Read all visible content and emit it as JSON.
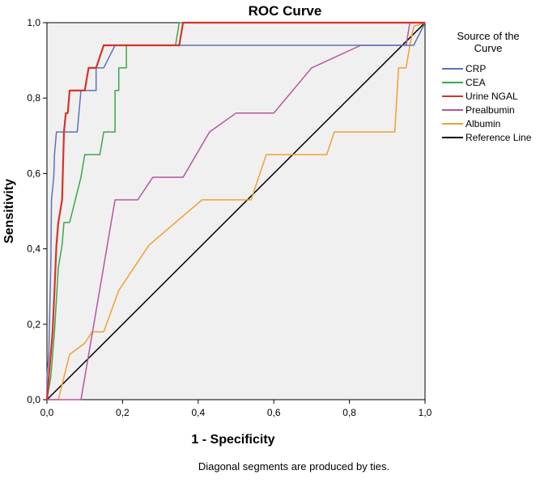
{
  "chart_data": {
    "type": "line",
    "title": "ROC Curve",
    "xlabel": "1 - Specificity",
    "ylabel": "Sensitivity",
    "xlim": [
      0,
      1
    ],
    "ylim": [
      0,
      1
    ],
    "x_ticks": [
      "0,0",
      "0,2",
      "0,4",
      "0,6",
      "0,8",
      "1,0"
    ],
    "y_ticks": [
      "0,0",
      "0,2",
      "0,4",
      "0,6",
      "0,8",
      "1,0"
    ],
    "grid": false,
    "legend_title": "Source of the Curve",
    "legend_position": "right",
    "footnote": "Diagonal segments are produced by ties.",
    "plot_background": "#f0f0f0",
    "series": [
      {
        "name": "CRP",
        "color": "#5b73b8",
        "points": [
          [
            0,
            0
          ],
          [
            0,
            0.06
          ],
          [
            0.005,
            0.12
          ],
          [
            0.01,
            0.35
          ],
          [
            0.012,
            0.53
          ],
          [
            0.018,
            0.59
          ],
          [
            0.02,
            0.65
          ],
          [
            0.025,
            0.71
          ],
          [
            0.06,
            0.71
          ],
          [
            0.08,
            0.71
          ],
          [
            0.09,
            0.82
          ],
          [
            0.13,
            0.82
          ],
          [
            0.13,
            0.88
          ],
          [
            0.15,
            0.88
          ],
          [
            0.18,
            0.94
          ],
          [
            0.36,
            0.94
          ],
          [
            0.95,
            0.94
          ],
          [
            0.97,
            0.94
          ],
          [
            1,
            1
          ]
        ]
      },
      {
        "name": "CEA",
        "color": "#3aa84a",
        "points": [
          [
            0,
            0
          ],
          [
            0.01,
            0.06
          ],
          [
            0.02,
            0.18
          ],
          [
            0.03,
            0.35
          ],
          [
            0.04,
            0.41
          ],
          [
            0.045,
            0.47
          ],
          [
            0.06,
            0.47
          ],
          [
            0.09,
            0.59
          ],
          [
            0.1,
            0.65
          ],
          [
            0.14,
            0.65
          ],
          [
            0.15,
            0.71
          ],
          [
            0.18,
            0.71
          ],
          [
            0.18,
            0.82
          ],
          [
            0.19,
            0.82
          ],
          [
            0.19,
            0.88
          ],
          [
            0.21,
            0.88
          ],
          [
            0.21,
            0.94
          ],
          [
            0.34,
            0.94
          ],
          [
            0.35,
            1
          ],
          [
            1,
            1
          ]
        ]
      },
      {
        "name": "Urine NGAL",
        "color": "#d8322a",
        "points": [
          [
            0,
            0
          ],
          [
            0.005,
            0.06
          ],
          [
            0.01,
            0.12
          ],
          [
            0.015,
            0.18
          ],
          [
            0.02,
            0.29
          ],
          [
            0.025,
            0.41
          ],
          [
            0.03,
            0.47
          ],
          [
            0.04,
            0.53
          ],
          [
            0.045,
            0.71
          ],
          [
            0.05,
            0.76
          ],
          [
            0.055,
            0.76
          ],
          [
            0.06,
            0.82
          ],
          [
            0.07,
            0.82
          ],
          [
            0.08,
            0.82
          ],
          [
            0.1,
            0.82
          ],
          [
            0.11,
            0.88
          ],
          [
            0.13,
            0.88
          ],
          [
            0.15,
            0.94
          ],
          [
            0.35,
            0.94
          ],
          [
            0.36,
            1
          ],
          [
            1,
            1
          ]
        ]
      },
      {
        "name": "Prealbumin",
        "color": "#b9559d",
        "points": [
          [
            0,
            0
          ],
          [
            0.09,
            0
          ],
          [
            0.18,
            0.53
          ],
          [
            0.24,
            0.53
          ],
          [
            0.28,
            0.59
          ],
          [
            0.36,
            0.59
          ],
          [
            0.43,
            0.71
          ],
          [
            0.5,
            0.76
          ],
          [
            0.56,
            0.76
          ],
          [
            0.6,
            0.76
          ],
          [
            0.7,
            0.88
          ],
          [
            0.83,
            0.94
          ],
          [
            0.95,
            0.94
          ],
          [
            0.96,
            1
          ],
          [
            1,
            1
          ]
        ]
      },
      {
        "name": "Albumin",
        "color": "#f0a132",
        "points": [
          [
            0,
            0
          ],
          [
            0.03,
            0
          ],
          [
            0.06,
            0.12
          ],
          [
            0.1,
            0.15
          ],
          [
            0.12,
            0.18
          ],
          [
            0.15,
            0.18
          ],
          [
            0.19,
            0.29
          ],
          [
            0.27,
            0.41
          ],
          [
            0.41,
            0.53
          ],
          [
            0.54,
            0.53
          ],
          [
            0.58,
            0.65
          ],
          [
            0.74,
            0.65
          ],
          [
            0.76,
            0.71
          ],
          [
            0.92,
            0.71
          ],
          [
            0.93,
            0.88
          ],
          [
            0.95,
            0.88
          ],
          [
            0.96,
            0.94
          ],
          [
            0.97,
            0.99
          ],
          [
            1,
            1
          ]
        ]
      },
      {
        "name": "Reference Line",
        "color": "#000000",
        "points": [
          [
            0,
            0
          ],
          [
            1,
            1
          ]
        ]
      }
    ]
  }
}
